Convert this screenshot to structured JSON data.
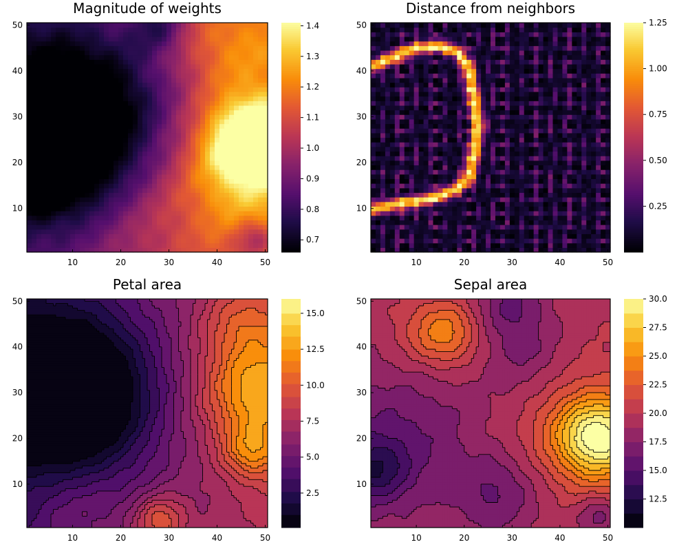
{
  "chart_data": [
    {
      "type": "heatmap",
      "title": "Magnitude of weights",
      "xlim": [
        0.5,
        50.5
      ],
      "ylim": [
        0.5,
        50.5
      ],
      "x_ticks": [
        10,
        20,
        30,
        40,
        50
      ],
      "y_ticks": [
        10,
        20,
        30,
        40,
        50
      ],
      "colorbar": {
        "min": 0.66,
        "max": 1.41,
        "ticks": [
          "0.7",
          "0.8",
          "0.9",
          "1.0",
          "1.1",
          "1.2",
          "1.3",
          "1.4"
        ],
        "tick_values": [
          0.7,
          0.8,
          0.9,
          1.0,
          1.1,
          1.2,
          1.3,
          1.4
        ]
      },
      "colormap": "inferno",
      "grid": 50,
      "bumps": [
        {
          "x": 12,
          "y": 30,
          "r": 14,
          "a": -0.42
        },
        {
          "x": 4,
          "y": 20,
          "r": 8,
          "a": -0.25
        },
        {
          "x": 47,
          "y": 25,
          "r": 6,
          "a": 0.42
        },
        {
          "x": 44,
          "y": 18,
          "r": 10,
          "a": 0.2
        },
        {
          "x": 42,
          "y": 45,
          "r": 8,
          "a": 0.12
        },
        {
          "x": 28,
          "y": 50,
          "r": 4,
          "a": -0.18
        },
        {
          "x": 48,
          "y": 3,
          "r": 3,
          "a": -0.18
        },
        {
          "x": 25,
          "y": 8,
          "r": 9,
          "a": 0.05
        }
      ],
      "base": 1.0,
      "trend_x": 0.006,
      "noise": 0.02
    },
    {
      "type": "heatmap",
      "title": "Distance from neighbors",
      "xlim": [
        0.5,
        50.5
      ],
      "ylim": [
        0.5,
        50.5
      ],
      "x_ticks": [
        10,
        20,
        30,
        40,
        50
      ],
      "y_ticks": [
        10,
        20,
        30,
        40,
        50
      ],
      "colorbar": {
        "min": 0.0,
        "max": 1.25,
        "ticks": [
          "0.25",
          "0.50",
          "0.75",
          "1.00",
          "1.25"
        ],
        "tick_values": [
          0.25,
          0.5,
          0.75,
          1.0,
          1.25
        ]
      },
      "colormap": "inferno",
      "grid": 50,
      "ridge": [
        [
          1,
          41
        ],
        [
          5,
          43
        ],
        [
          10,
          45
        ],
        [
          15,
          45.5
        ],
        [
          19,
          44
        ],
        [
          21,
          40
        ],
        [
          22,
          34
        ],
        [
          23,
          28
        ],
        [
          22,
          22
        ],
        [
          21,
          17
        ],
        [
          18,
          14
        ],
        [
          12,
          12
        ],
        [
          6,
          11
        ],
        [
          1,
          10
        ]
      ],
      "ridge_value": 1.05,
      "ridge_width": 0.9,
      "cell_value": 0.28,
      "noise": 0.08
    },
    {
      "type": "contour",
      "title": "Petal area",
      "xlim": [
        0.5,
        50.5
      ],
      "ylim": [
        0.5,
        50.5
      ],
      "x_ticks": [
        10,
        20,
        30,
        40,
        50
      ],
      "y_ticks": [
        10,
        20,
        30,
        40,
        50
      ],
      "colorbar": {
        "min": 0.1,
        "max": 16.0,
        "ticks": [
          "2.5",
          "5.0",
          "7.5",
          "10.0",
          "12.5",
          "15.0"
        ],
        "tick_values": [
          2.5,
          5.0,
          7.5,
          10.0,
          12.5,
          15.0
        ]
      },
      "levels": [
        0.1,
        1.0,
        1.8,
        2.6,
        3.5,
        4.3,
        5.1,
        5.9,
        6.8,
        7.6,
        8.4,
        9.2,
        10.1,
        10.9,
        11.7,
        12.5,
        13.4,
        14.2,
        15.0,
        16.0
      ],
      "colormap": "inferno",
      "grid": 50,
      "bumps": [
        {
          "x": 10,
          "y": 30,
          "r": 12,
          "a": -7.5
        },
        {
          "x": 48,
          "y": 30,
          "r": 8,
          "a": 5.5
        },
        {
          "x": 47,
          "y": 17,
          "r": 4,
          "a": 3.5
        },
        {
          "x": 28,
          "y": 2,
          "r": 4,
          "a": 4.0
        },
        {
          "x": 45,
          "y": 45,
          "r": 6,
          "a": 2.5
        },
        {
          "x": 10,
          "y": 4,
          "r": 7,
          "a": 1.5
        }
      ],
      "base": 5.5,
      "trend_x": 0.1,
      "noise": 0.15
    },
    {
      "type": "contour",
      "title": "Sepal area",
      "xlim": [
        0.5,
        50.5
      ],
      "ylim": [
        0.5,
        50.5
      ],
      "x_ticks": [
        10,
        20,
        30,
        40,
        50
      ],
      "y_ticks": [
        10,
        20,
        30,
        40,
        50
      ],
      "colorbar": {
        "min": 10.0,
        "max": 30.0,
        "ticks": [
          "12.5",
          "15.0",
          "17.5",
          "20.0",
          "22.5",
          "25.0",
          "27.5",
          "30.0"
        ],
        "tick_values": [
          12.5,
          15.0,
          17.5,
          20.0,
          22.5,
          25.0,
          27.5,
          30.0
        ]
      },
      "levels": [
        10.0,
        11.25,
        12.5,
        13.75,
        15.0,
        16.25,
        17.5,
        18.75,
        20.0,
        21.25,
        22.5,
        23.75,
        25.0,
        26.25,
        27.5,
        28.75,
        30.0
      ],
      "colormap": "inferno",
      "grid": 50,
      "bumps": [
        {
          "x": 16,
          "y": 43,
          "r": 5,
          "a": 5.0
        },
        {
          "x": 48,
          "y": 20,
          "r": 6,
          "a": 9.5
        },
        {
          "x": 44,
          "y": 22,
          "r": 10,
          "a": 2.5
        },
        {
          "x": 1,
          "y": 13,
          "r": 5,
          "a": -4.5
        },
        {
          "x": 8,
          "y": 20,
          "r": 10,
          "a": -2.5
        },
        {
          "x": 27,
          "y": 8,
          "r": 6,
          "a": -3.0
        },
        {
          "x": 30,
          "y": 49,
          "r": 5,
          "a": -3.0
        },
        {
          "x": 33,
          "y": 38,
          "r": 6,
          "a": -2.0
        },
        {
          "x": 48,
          "y": 3,
          "r": 3,
          "a": -3.0
        },
        {
          "x": 8,
          "y": 45,
          "r": 8,
          "a": 1.5
        }
      ],
      "base": 19.0,
      "trend_x": 0.03,
      "noise": 0.2
    }
  ]
}
